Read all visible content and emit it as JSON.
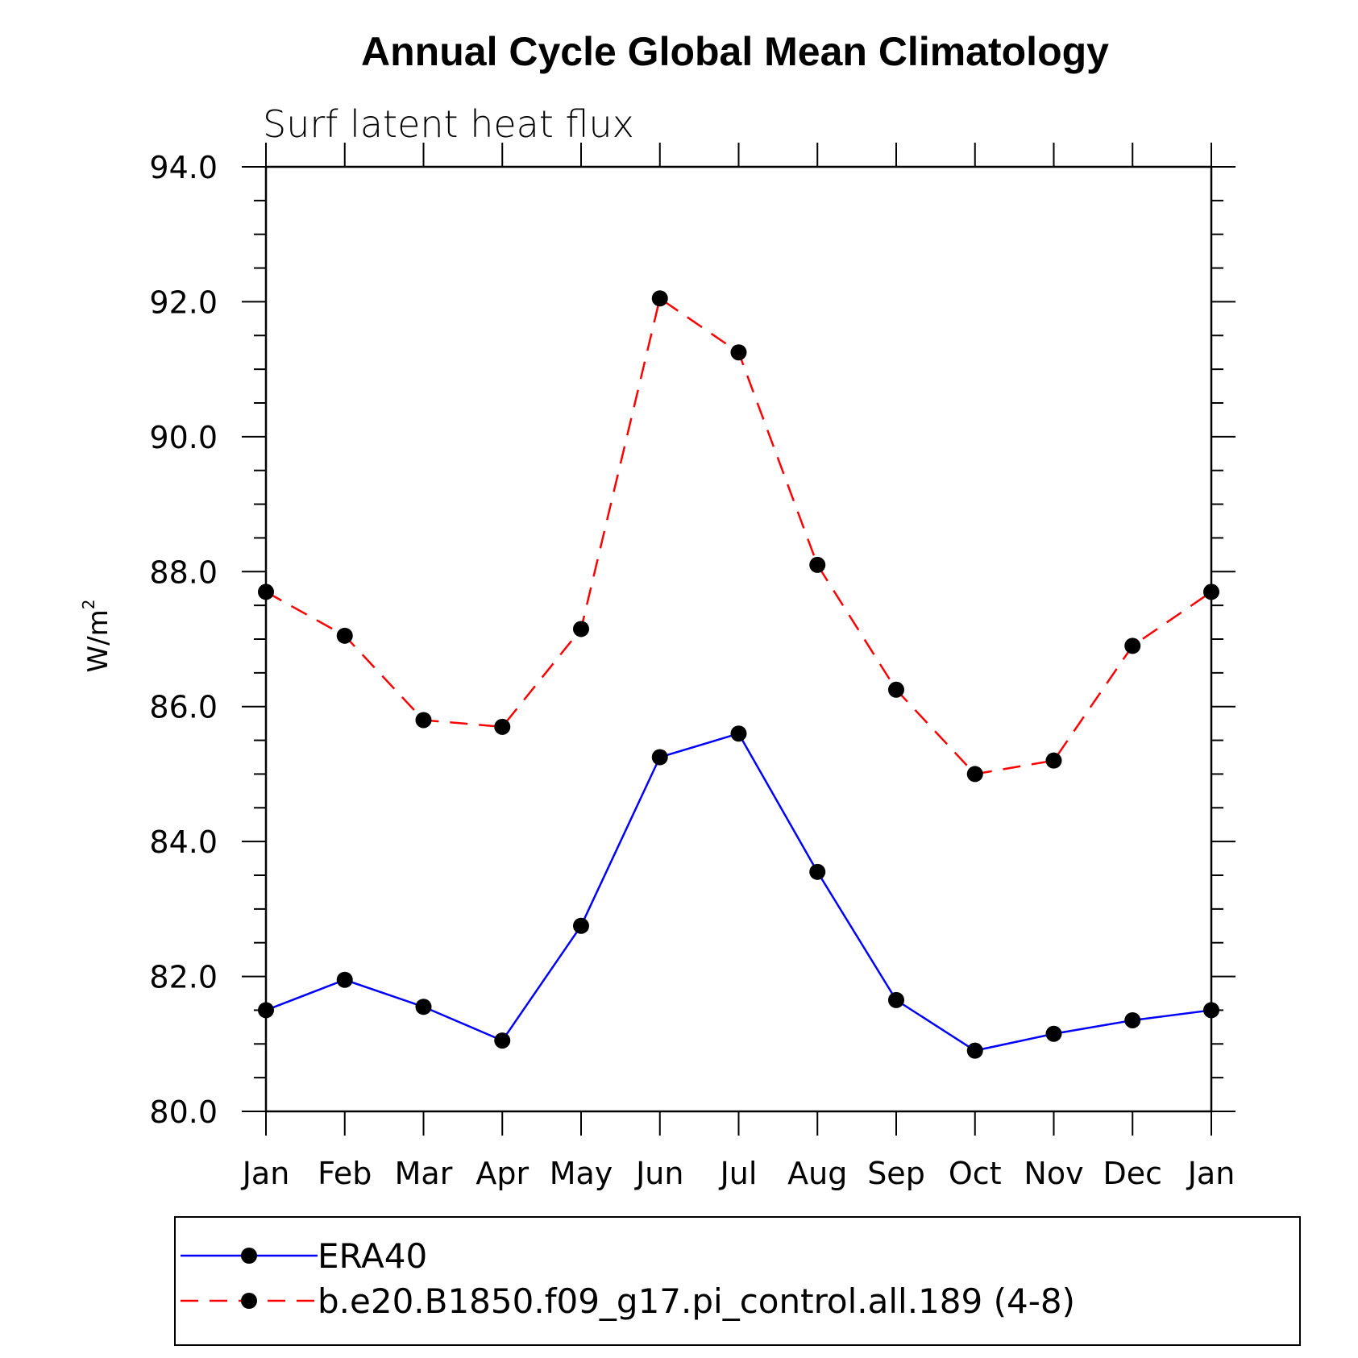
{
  "chart_data": {
    "type": "line",
    "title": "Annual Cycle Global Mean Climatology",
    "subtitle": "Surf latent heat flux",
    "ylabel": "W/m",
    "ylabel_sup": "2",
    "ylim": [
      80,
      94
    ],
    "yticks": [
      "80.0",
      "82.0",
      "84.0",
      "86.0",
      "88.0",
      "90.0",
      "92.0",
      "94.0"
    ],
    "categories": [
      "Jan",
      "Feb",
      "Mar",
      "Apr",
      "May",
      "Jun",
      "Jul",
      "Aug",
      "Sep",
      "Oct",
      "Nov",
      "Dec",
      "Jan"
    ],
    "series": [
      {
        "name": "ERA40",
        "color": "#0000ff",
        "dash": "solid",
        "values": [
          81.5,
          81.95,
          81.55,
          81.05,
          82.75,
          85.25,
          85.6,
          83.55,
          81.65,
          80.9,
          81.15,
          81.35,
          81.5
        ]
      },
      {
        "name": "b.e20.B1850.f09_g17.pi_control.all.189 (4-8)",
        "color": "#ff0000",
        "dash": "dashed",
        "values": [
          87.7,
          87.05,
          85.8,
          85.7,
          87.15,
          92.05,
          91.25,
          88.1,
          86.25,
          85.0,
          85.2,
          86.9,
          87.7
        ]
      }
    ],
    "marker_color": "#000000",
    "grid": false,
    "legend_position": "bottom"
  }
}
